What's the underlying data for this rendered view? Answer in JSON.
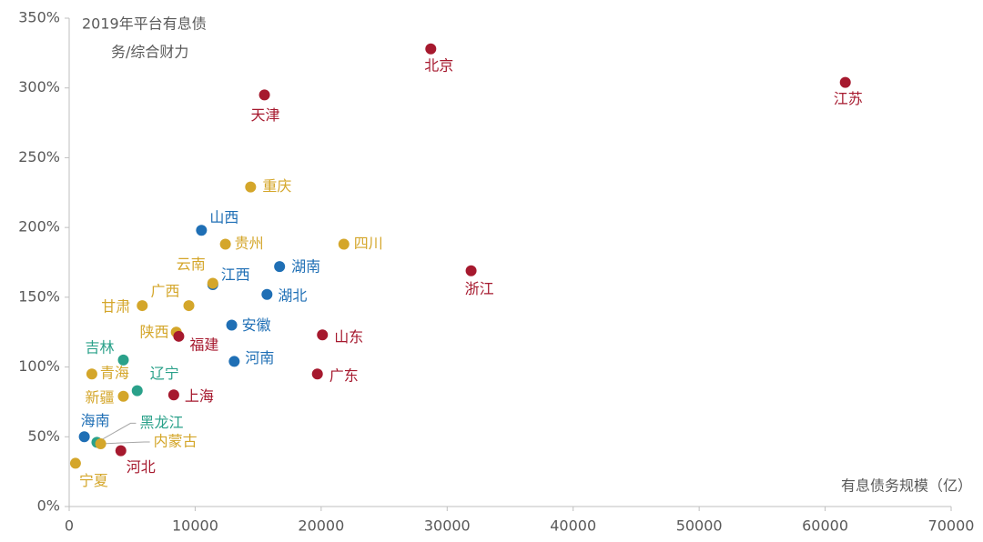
{
  "chart_data": {
    "type": "scatter",
    "ylabel": [
      "2019年平台有息债",
      "务/综合财力"
    ],
    "xlabel": "有息债务规模（亿）",
    "labels": [
      "北京",
      "江苏",
      "天津",
      "重庆",
      "山西",
      "贵州",
      "四川",
      "浙江",
      "湖南",
      "江西",
      "云南",
      "湖北",
      "广西",
      "甘肃",
      "安徽",
      "陕西",
      "福建",
      "山东",
      "吉林",
      "河南",
      "广东",
      "青海",
      "辽宁",
      "新疆",
      "上海",
      "海南",
      "黑龙江",
      "内蒙古",
      "河北",
      "宁夏"
    ],
    "x": [
      28700,
      61600,
      15500,
      14400,
      10500,
      12400,
      21800,
      31900,
      16700,
      11400,
      11400,
      15700,
      9500,
      5800,
      12900,
      8500,
      8700,
      20100,
      4300,
      13100,
      19700,
      1800,
      5400,
      4300,
      8300,
      1200,
      2200,
      2500,
      4100,
      500
    ],
    "values": [
      328,
      304,
      295,
      229,
      198,
      188,
      188,
      169,
      172,
      159,
      160,
      152,
      144,
      144,
      130,
      125,
      122,
      123,
      105,
      104,
      95,
      95,
      83,
      79,
      80,
      50,
      46,
      45,
      40,
      31
    ],
    "colors": [
      "#a6192e",
      "#a6192e",
      "#a6192e",
      "#d4a62a",
      "#1f6fb5",
      "#d4a62a",
      "#d4a62a",
      "#a6192e",
      "#1f6fb5",
      "#1f6fb5",
      "#d4a62a",
      "#1f6fb5",
      "#d4a62a",
      "#d4a62a",
      "#1f6fb5",
      "#d4a62a",
      "#a6192e",
      "#a6192e",
      "#2aa18a",
      "#1f6fb5",
      "#a6192e",
      "#d4a62a",
      "#2aa18a",
      "#d4a62a",
      "#a6192e",
      "#1f6fb5",
      "#2aa18a",
      "#d4a62a",
      "#a6192e",
      "#d4a62a"
    ],
    "xlim": [
      0,
      70000
    ],
    "xticks": [
      0,
      10000,
      20000,
      30000,
      40000,
      50000,
      60000,
      70000
    ],
    "ylim": [
      0,
      350
    ],
    "yticks": [
      {
        "value": 0,
        "label": "0%"
      },
      {
        "value": 50,
        "label": "50%"
      },
      {
        "value": 100,
        "label": "100%"
      },
      {
        "value": 150,
        "label": "150%"
      },
      {
        "value": 200,
        "label": "200%"
      },
      {
        "value": 250,
        "label": "250%"
      },
      {
        "value": 300,
        "label": "300%"
      },
      {
        "value": 350,
        "label": "350%"
      }
    ]
  }
}
